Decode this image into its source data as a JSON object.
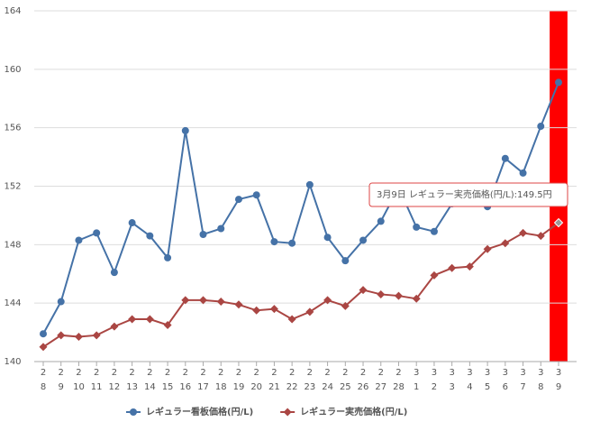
{
  "chart_data": {
    "type": "line",
    "categories": [
      [
        "2",
        "8"
      ],
      [
        "2",
        "9"
      ],
      [
        "2",
        "10"
      ],
      [
        "2",
        "11"
      ],
      [
        "2",
        "12"
      ],
      [
        "2",
        "13"
      ],
      [
        "2",
        "14"
      ],
      [
        "2",
        "15"
      ],
      [
        "2",
        "16"
      ],
      [
        "2",
        "17"
      ],
      [
        "2",
        "18"
      ],
      [
        "2",
        "19"
      ],
      [
        "2",
        "20"
      ],
      [
        "2",
        "21"
      ],
      [
        "2",
        "22"
      ],
      [
        "2",
        "23"
      ],
      [
        "2",
        "24"
      ],
      [
        "2",
        "25"
      ],
      [
        "2",
        "26"
      ],
      [
        "2",
        "27"
      ],
      [
        "2",
        "28"
      ],
      [
        "3",
        "1"
      ],
      [
        "3",
        "2"
      ],
      [
        "3",
        "3"
      ],
      [
        "3",
        "4"
      ],
      [
        "3",
        "5"
      ],
      [
        "3",
        "6"
      ],
      [
        "3",
        "7"
      ],
      [
        "3",
        "8"
      ],
      [
        "3",
        "9"
      ]
    ],
    "series": [
      {
        "name": "レギュラー看板価格(円/L)",
        "color": "#4572a7",
        "marker": "circle",
        "values": [
          141.9,
          144.1,
          148.3,
          148.8,
          146.1,
          149.5,
          148.6,
          147.1,
          155.8,
          148.7,
          149.1,
          151.1,
          151.4,
          148.2,
          148.1,
          152.1,
          148.5,
          146.9,
          148.3,
          149.6,
          151.9,
          149.2,
          148.9,
          150.8,
          151.0,
          150.6,
          153.9,
          152.9,
          156.1,
          159.1
        ]
      },
      {
        "name": "レギュラー実売価格(円/L)",
        "color": "#aa4643",
        "marker": "diamond",
        "values": [
          141.0,
          141.8,
          141.7,
          141.8,
          142.4,
          142.9,
          142.9,
          142.5,
          144.2,
          144.2,
          144.1,
          143.9,
          143.5,
          143.6,
          142.9,
          143.4,
          144.2,
          143.8,
          144.9,
          144.6,
          144.5,
          144.3,
          145.9,
          146.4,
          146.5,
          147.7,
          148.1,
          148.8,
          148.6,
          149.5
        ]
      }
    ],
    "ylim": [
      140,
      164
    ],
    "yticks": [
      140,
      144,
      148,
      152,
      156,
      160,
      164
    ],
    "grid": true,
    "highlight": {
      "category_index": 29,
      "color": "#ff0000"
    },
    "tooltip": {
      "text": "3月9日 レギュラー実売価格(円/L):149.5円",
      "series_index": 1,
      "category_index": 29
    },
    "legend": "bottom"
  }
}
